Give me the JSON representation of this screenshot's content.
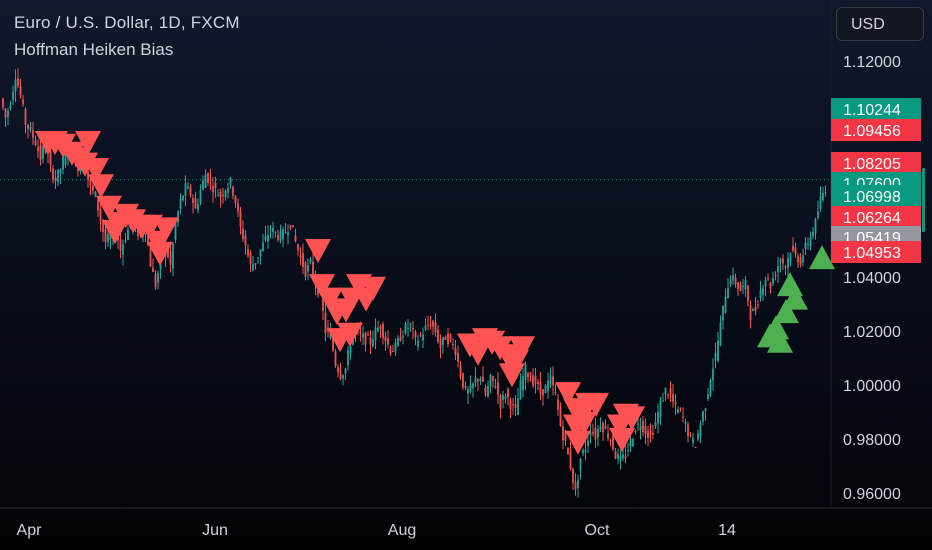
{
  "header": {
    "title": "Euro / U.S. Dollar, 1D, FXCM",
    "indicator": "Hoffman Heiken Bias",
    "currency_button": "USD"
  },
  "chart_data": {
    "type": "candlestick",
    "title": "Euro / U.S. Dollar, 1D, FXCM",
    "indicator": "Hoffman Heiken Bias",
    "x_ticks": [
      "Apr",
      "Jun",
      "Aug",
      "Oct",
      "14"
    ],
    "y_ticks": [
      "1.12000",
      "1.04000",
      "1.02000",
      "1.00000",
      "0.98000",
      "0.96000"
    ],
    "ylim": [
      0.955,
      1.12
    ],
    "current_price": 1.076,
    "colors": {
      "up": "#26a69a",
      "down": "#ef5350",
      "buy_signal": "#4caf50",
      "sell_signal": "#ff5252"
    },
    "price_labels": [
      {
        "value": "1.10244",
        "color": "#089981"
      },
      {
        "value": "1.09456",
        "color": "#f23645"
      },
      {
        "value": "1.08205",
        "color": "#f23645"
      },
      {
        "value": "1.07600",
        "color": "#089981"
      },
      {
        "value": "1.06998",
        "color": "#089981"
      },
      {
        "value": "1.06264",
        "color": "#f23645"
      },
      {
        "value": "1.05419",
        "color": "#9598a1"
      },
      {
        "value": "1.04953",
        "color": "#f23645"
      }
    ],
    "close_path": [
      [
        3,
        1.106
      ],
      [
        8,
        1.099
      ],
      [
        13,
        1.105
      ],
      [
        18,
        1.115
      ],
      [
        23,
        1.107
      ],
      [
        28,
        1.097
      ],
      [
        33,
        1.094
      ],
      [
        38,
        1.09
      ],
      [
        43,
        1.084
      ],
      [
        48,
        1.09
      ],
      [
        53,
        1.08
      ],
      [
        58,
        1.076
      ],
      [
        63,
        1.08
      ],
      [
        68,
        1.086
      ],
      [
        73,
        1.089
      ],
      [
        78,
        1.08
      ],
      [
        83,
        1.082
      ],
      [
        88,
        1.08
      ],
      [
        93,
        1.073
      ],
      [
        98,
        1.07
      ],
      [
        103,
        1.061
      ],
      [
        108,
        1.053
      ],
      [
        113,
        1.055
      ],
      [
        118,
        1.058
      ],
      [
        123,
        1.05
      ],
      [
        128,
        1.055
      ],
      [
        133,
        1.06
      ],
      [
        138,
        1.058
      ],
      [
        143,
        1.055
      ],
      [
        148,
        1.058
      ],
      [
        153,
        1.045
      ],
      [
        158,
        1.037
      ],
      [
        163,
        1.046
      ],
      [
        168,
        1.052
      ],
      [
        173,
        1.044
      ],
      [
        178,
        1.06
      ],
      [
        183,
        1.068
      ],
      [
        188,
        1.073
      ],
      [
        193,
        1.071
      ],
      [
        198,
        1.065
      ],
      [
        203,
        1.072
      ],
      [
        208,
        1.078
      ],
      [
        213,
        1.075
      ],
      [
        218,
        1.072
      ],
      [
        223,
        1.07
      ],
      [
        228,
        1.073
      ],
      [
        233,
        1.075
      ],
      [
        238,
        1.068
      ],
      [
        243,
        1.058
      ],
      [
        248,
        1.052
      ],
      [
        253,
        1.044
      ],
      [
        258,
        1.046
      ],
      [
        263,
        1.05
      ],
      [
        268,
        1.054
      ],
      [
        273,
        1.058
      ],
      [
        278,
        1.056
      ],
      [
        283,
        1.055
      ],
      [
        288,
        1.057
      ],
      [
        293,
        1.06
      ],
      [
        298,
        1.053
      ],
      [
        303,
        1.047
      ],
      [
        308,
        1.042
      ],
      [
        313,
        1.045
      ],
      [
        318,
        1.038
      ],
      [
        323,
        1.033
      ],
      [
        328,
        1.02
      ],
      [
        333,
        1.018
      ],
      [
        338,
        1.008
      ],
      [
        343,
        1.004
      ],
      [
        348,
        1.006
      ],
      [
        353,
        1.016
      ],
      [
        358,
        1.021
      ],
      [
        363,
        1.018
      ],
      [
        368,
        1.017
      ],
      [
        373,
        1.016
      ],
      [
        378,
        1.02
      ],
      [
        383,
        1.022
      ],
      [
        388,
        1.017
      ],
      [
        393,
        1.013
      ],
      [
        398,
        1.014
      ],
      [
        403,
        1.018
      ],
      [
        408,
        1.021
      ],
      [
        413,
        1.022
      ],
      [
        418,
        1.016
      ],
      [
        423,
        1.018
      ],
      [
        428,
        1.021
      ],
      [
        433,
        1.023
      ],
      [
        438,
        1.02
      ],
      [
        443,
        1.014
      ],
      [
        448,
        1.018
      ],
      [
        453,
        1.016
      ],
      [
        458,
        1.013
      ],
      [
        463,
        1.004
      ],
      [
        468,
        0.997
      ],
      [
        473,
        0.998
      ],
      [
        478,
        1.002
      ],
      [
        483,
        1.003
      ],
      [
        488,
        0.996
      ],
      [
        493,
        1.002
      ],
      [
        498,
        1.0
      ],
      [
        503,
        0.993
      ],
      [
        508,
        0.997
      ],
      [
        513,
        0.993
      ],
      [
        518,
        0.99
      ],
      [
        523,
        1.0
      ],
      [
        528,
        1.006
      ],
      [
        533,
        1.002
      ],
      [
        538,
        1.001
      ],
      [
        543,
        0.997
      ],
      [
        548,
        0.999
      ],
      [
        553,
        1.002
      ],
      [
        558,
        0.996
      ],
      [
        563,
        0.985
      ],
      [
        568,
        0.978
      ],
      [
        573,
        0.97
      ],
      [
        578,
        0.96
      ],
      [
        583,
        0.973
      ],
      [
        588,
        0.977
      ],
      [
        593,
        0.984
      ],
      [
        598,
        0.981
      ],
      [
        603,
        0.986
      ],
      [
        608,
        0.983
      ],
      [
        613,
        0.98
      ],
      [
        618,
        0.974
      ],
      [
        623,
        0.972
      ],
      [
        628,
        0.974
      ],
      [
        633,
        0.979
      ],
      [
        638,
        0.984
      ],
      [
        643,
        0.986
      ],
      [
        648,
        0.983
      ],
      [
        653,
        0.981
      ],
      [
        658,
        0.986
      ],
      [
        663,
        0.993
      ],
      [
        668,
        0.998
      ],
      [
        673,
        0.996
      ],
      [
        678,
        0.991
      ],
      [
        683,
        0.99
      ],
      [
        688,
        0.985
      ],
      [
        693,
        0.98
      ],
      [
        698,
        0.978
      ],
      [
        703,
        0.986
      ],
      [
        708,
        0.993
      ],
      [
        713,
        1.003
      ],
      [
        718,
        1.011
      ],
      [
        723,
        1.022
      ],
      [
        728,
        1.034
      ],
      [
        733,
        1.04
      ],
      [
        738,
        1.038
      ],
      [
        743,
        1.035
      ],
      [
        748,
        1.037
      ],
      [
        753,
        1.026
      ],
      [
        758,
        1.028
      ],
      [
        763,
        1.035
      ],
      [
        768,
        1.04
      ],
      [
        773,
        1.037
      ],
      [
        778,
        1.042
      ],
      [
        783,
        1.047
      ],
      [
        788,
        1.044
      ],
      [
        793,
        1.05
      ],
      [
        798,
        1.048
      ],
      [
        803,
        1.046
      ],
      [
        808,
        1.051
      ],
      [
        813,
        1.055
      ],
      [
        818,
        1.06
      ],
      [
        823,
        1.069
      ],
      [
        828,
        1.073
      ]
    ],
    "sell_signals": [
      [
        48,
        1.09
      ],
      [
        55,
        1.09
      ],
      [
        63,
        1.089
      ],
      [
        72,
        1.086
      ],
      [
        79,
        1.084
      ],
      [
        88,
        1.09
      ],
      [
        96,
        1.08
      ],
      [
        85,
        1.082
      ],
      [
        101,
        1.074
      ],
      [
        109,
        1.066
      ],
      [
        118,
        1.06
      ],
      [
        126,
        1.063
      ],
      [
        133,
        1.061
      ],
      [
        142,
        1.059
      ],
      [
        150,
        1.059
      ],
      [
        158,
        1.053
      ],
      [
        166,
        1.058
      ],
      [
        115,
        1.057
      ],
      [
        160,
        1.049
      ],
      [
        318,
        1.05
      ],
      [
        322,
        1.037
      ],
      [
        330,
        1.032
      ],
      [
        337,
        1.027
      ],
      [
        346,
        1.028
      ],
      [
        352,
        1.032
      ],
      [
        359,
        1.037
      ],
      [
        366,
        1.032
      ],
      [
        373,
        1.036
      ],
      [
        340,
        1.017
      ],
      [
        350,
        1.019
      ],
      [
        470,
        1.015
      ],
      [
        478,
        1.012
      ],
      [
        485,
        1.017
      ],
      [
        492,
        1.016
      ],
      [
        500,
        1.014
      ],
      [
        508,
        1.011
      ],
      [
        516,
        1.009
      ],
      [
        522,
        1.014
      ],
      [
        512,
        1.004
      ],
      [
        568,
        0.997
      ],
      [
        576,
        0.991
      ],
      [
        582,
        0.991
      ],
      [
        588,
        0.993
      ],
      [
        596,
        0.993
      ],
      [
        584,
        0.986
      ],
      [
        576,
        0.985
      ],
      [
        578,
        0.979
      ],
      [
        620,
        0.985
      ],
      [
        626,
        0.989
      ],
      [
        632,
        0.988
      ],
      [
        622,
        0.98
      ]
    ],
    "buy_signals": [
      [
        790,
        1.037
      ],
      [
        795,
        1.032
      ],
      [
        786,
        1.027
      ],
      [
        776,
        1.021
      ],
      [
        770,
        1.018
      ],
      [
        780,
        1.016
      ],
      [
        822,
        1.047
      ]
    ]
  }
}
